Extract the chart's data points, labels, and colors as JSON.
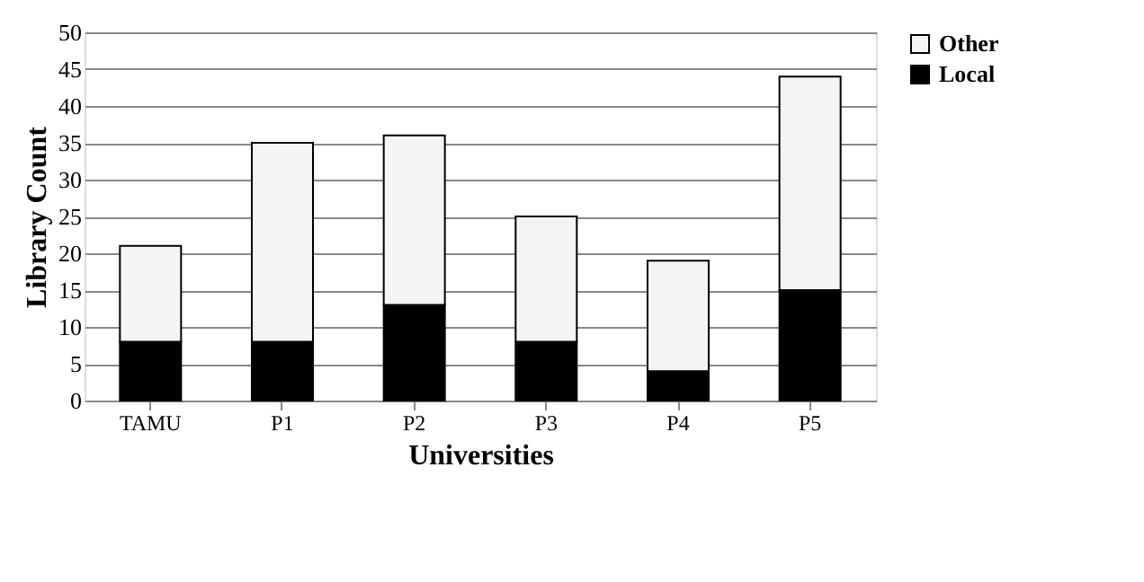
{
  "chart_data": {
    "type": "bar",
    "stacked": true,
    "xlabel": "Universities",
    "ylabel": "Library Count",
    "categories": [
      "TAMU",
      "P1",
      "P2",
      "P3",
      "P4",
      "P5"
    ],
    "series": [
      {
        "name": "Local",
        "color": "#000000",
        "values": [
          8,
          8,
          13,
          8,
          4,
          15
        ]
      },
      {
        "name": "Other",
        "color": "#f4f4f4",
        "values": [
          13,
          27,
          23,
          17,
          15,
          29
        ]
      }
    ],
    "ylim": [
      0,
      50
    ],
    "yticks": [
      0,
      5,
      10,
      15,
      20,
      25,
      30,
      35,
      40,
      45,
      50
    ],
    "grid": "y",
    "legend": "right"
  }
}
